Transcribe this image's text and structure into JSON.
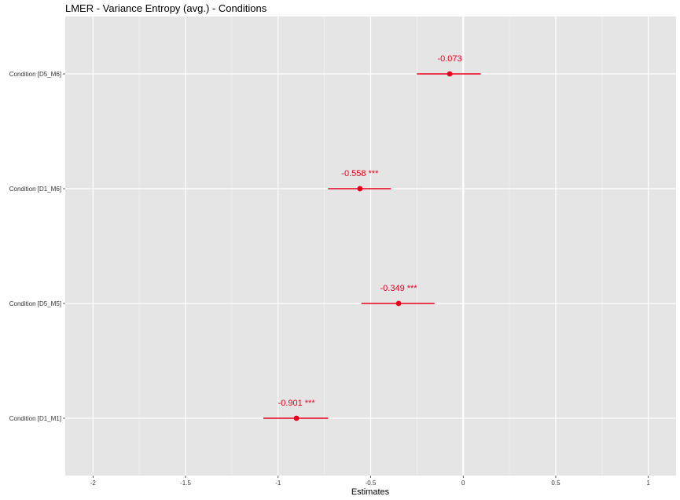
{
  "chart_data": {
    "type": "forest",
    "title": "LMER - Variance Entropy (avg.) - Conditions",
    "xlabel": "Estimates",
    "ylabel": "",
    "xlim": [
      -2.15,
      1.15
    ],
    "x_ticks": [
      -2,
      -1.5,
      -1,
      -0.5,
      0,
      0.5,
      1
    ],
    "x_tick_labels": [
      "-2",
      "-1.5",
      "-1",
      "-0.5",
      "0",
      "0.5",
      "1"
    ],
    "zero_line": 0,
    "grid": true,
    "point_color": "#e8001c",
    "panel_color": "#e5e5e5",
    "series": [
      {
        "term": "Condition [D5_M6]",
        "estimate": -0.073,
        "ci_low": -0.25,
        "ci_high": 0.095,
        "label": "-0.073"
      },
      {
        "term": "Condition [D1_M6]",
        "estimate": -0.558,
        "ci_low": -0.73,
        "ci_high": -0.39,
        "label": "-0.558 ***"
      },
      {
        "term": "Condition [D5_M5]",
        "estimate": -0.349,
        "ci_low": -0.55,
        "ci_high": -0.155,
        "label": "-0.349 ***"
      },
      {
        "term": "Condition [D1_M1]",
        "estimate": -0.901,
        "ci_low": -1.08,
        "ci_high": -0.73,
        "label": "-0.901 ***"
      }
    ]
  }
}
